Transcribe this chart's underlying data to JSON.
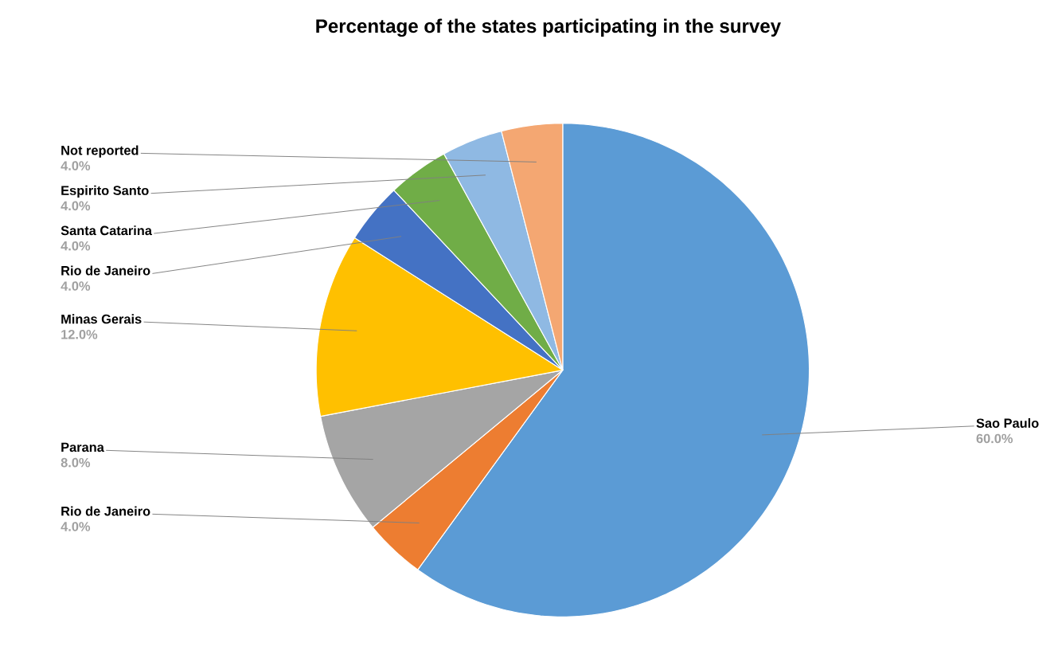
{
  "chart_data": {
    "type": "pie",
    "title": "Percentage of the states participating in the survey",
    "categories": [
      "Sao Paulo",
      "Rio de Janeiro",
      "Parana",
      "Minas Gerais",
      "Rio de Janeiro",
      "Santa Catarina",
      "Espirito Santo",
      "Not reported"
    ],
    "values": [
      60,
      4,
      8,
      12,
      4,
      4,
      4,
      4
    ],
    "colors": [
      "#5b9bd5",
      "#ed7d31",
      "#a5a5a5",
      "#ffc000",
      "#4472c4",
      "#70ad47",
      "#8fb9e3",
      "#f4a772"
    ],
    "value_labels": [
      "60.0%",
      "4.0%",
      "8.0%",
      "12.0%",
      "4.0%",
      "4.0%",
      "4.0%",
      "4.0%"
    ]
  }
}
